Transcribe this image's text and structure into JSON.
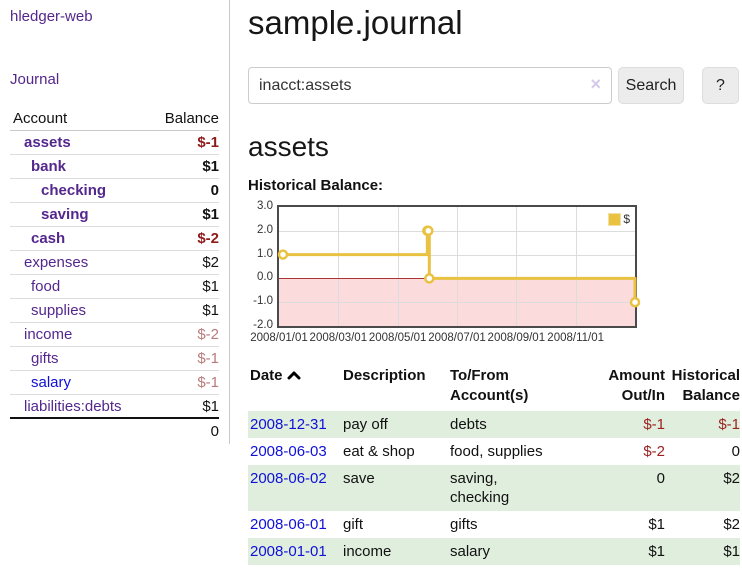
{
  "app_title": "hledger-web",
  "sidebar": {
    "journal_link": "Journal",
    "headers": {
      "account": "Account",
      "balance": "Balance"
    },
    "accounts": [
      {
        "name": "assets",
        "balance": "$-1"
      },
      {
        "name": "bank",
        "balance": "$1"
      },
      {
        "name": "checking",
        "balance": "0"
      },
      {
        "name": "saving",
        "balance": "$1"
      },
      {
        "name": "cash",
        "balance": "$-2"
      },
      {
        "name": "expenses",
        "balance": "$2"
      },
      {
        "name": "food",
        "balance": "$1"
      },
      {
        "name": "supplies",
        "balance": "$1"
      },
      {
        "name": "income",
        "balance": "$-2"
      },
      {
        "name": "gifts",
        "balance": "$-1"
      },
      {
        "name": "salary",
        "balance": "$-1"
      },
      {
        "name": "liabilities:debts",
        "balance": "$1"
      }
    ],
    "total": "0"
  },
  "main": {
    "title": "sample.journal",
    "search": {
      "value": "inacct:assets",
      "clear_icon": "×",
      "search_button": "Search",
      "help_button": "?"
    },
    "account_heading": "assets"
  },
  "chart_data": {
    "type": "line",
    "title": "Historical Balance:",
    "legend": {
      "position": "ne",
      "label": "$"
    },
    "series": [
      {
        "name": "$",
        "color": "#e9c242",
        "points": [
          [
            "2008-01-01",
            1
          ],
          [
            "2008-06-01",
            1
          ],
          [
            "2008-06-01",
            2
          ],
          [
            "2008-06-02",
            2
          ],
          [
            "2008-06-03",
            2
          ],
          [
            "2008-06-03",
            0
          ],
          [
            "2008-12-31",
            0
          ],
          [
            "2008-12-31",
            -1
          ]
        ],
        "markers": [
          [
            "2008-01-01",
            1
          ],
          [
            "2008-06-01",
            2
          ],
          [
            "2008-06-02",
            2
          ],
          [
            "2008-06-03",
            0
          ],
          [
            "2008-12-31",
            -1
          ]
        ]
      }
    ],
    "ylim": [
      -2,
      3
    ],
    "yticks": [
      3,
      2,
      1,
      0,
      -1,
      -2
    ],
    "xticks": [
      "2008/01/01",
      "2008/03/01",
      "2008/05/01",
      "2008/07/01",
      "2008/09/01",
      "2008/11/01"
    ],
    "x_start_year": 2008,
    "x_span_months": 12,
    "grid": true,
    "negative_region": true
  },
  "transactions": {
    "headers": {
      "date": "Date",
      "description": "Description",
      "accounts": "To/From Account(s)",
      "amount": "Amount Out/In",
      "balance": "Historical Balance"
    },
    "rows": [
      {
        "date": "2008-12-31",
        "description": "pay off",
        "accounts": "debts",
        "amount": "$-1",
        "balance": "$-1"
      },
      {
        "date": "2008-06-03",
        "description": "eat & shop",
        "accounts": "food, supplies",
        "amount": "$-2",
        "balance": "0"
      },
      {
        "date": "2008-06-02",
        "description": "save",
        "accounts": "saving,\nchecking",
        "amount": "0",
        "balance": "$2"
      },
      {
        "date": "2008-06-01",
        "description": "gift",
        "accounts": "gifts",
        "amount": "$1",
        "balance": "$2"
      },
      {
        "date": "2008-01-01",
        "description": "income",
        "accounts": "salary",
        "amount": "$1",
        "balance": "$1"
      }
    ]
  },
  "colors": {
    "link_purple": "#54278d",
    "link_blue": "#1010d8",
    "negative_strong": "#8e1a1a",
    "negative_soft": "#b97b7b",
    "table_negative": "#9c2222",
    "row_stripe_green": "#e0eedd",
    "chart_line_yellow": "#e9c242",
    "chart_negative_fill": "#fbdbdb",
    "chart_zero_line": "#a93434",
    "chart_border": "#4a4a4a"
  }
}
